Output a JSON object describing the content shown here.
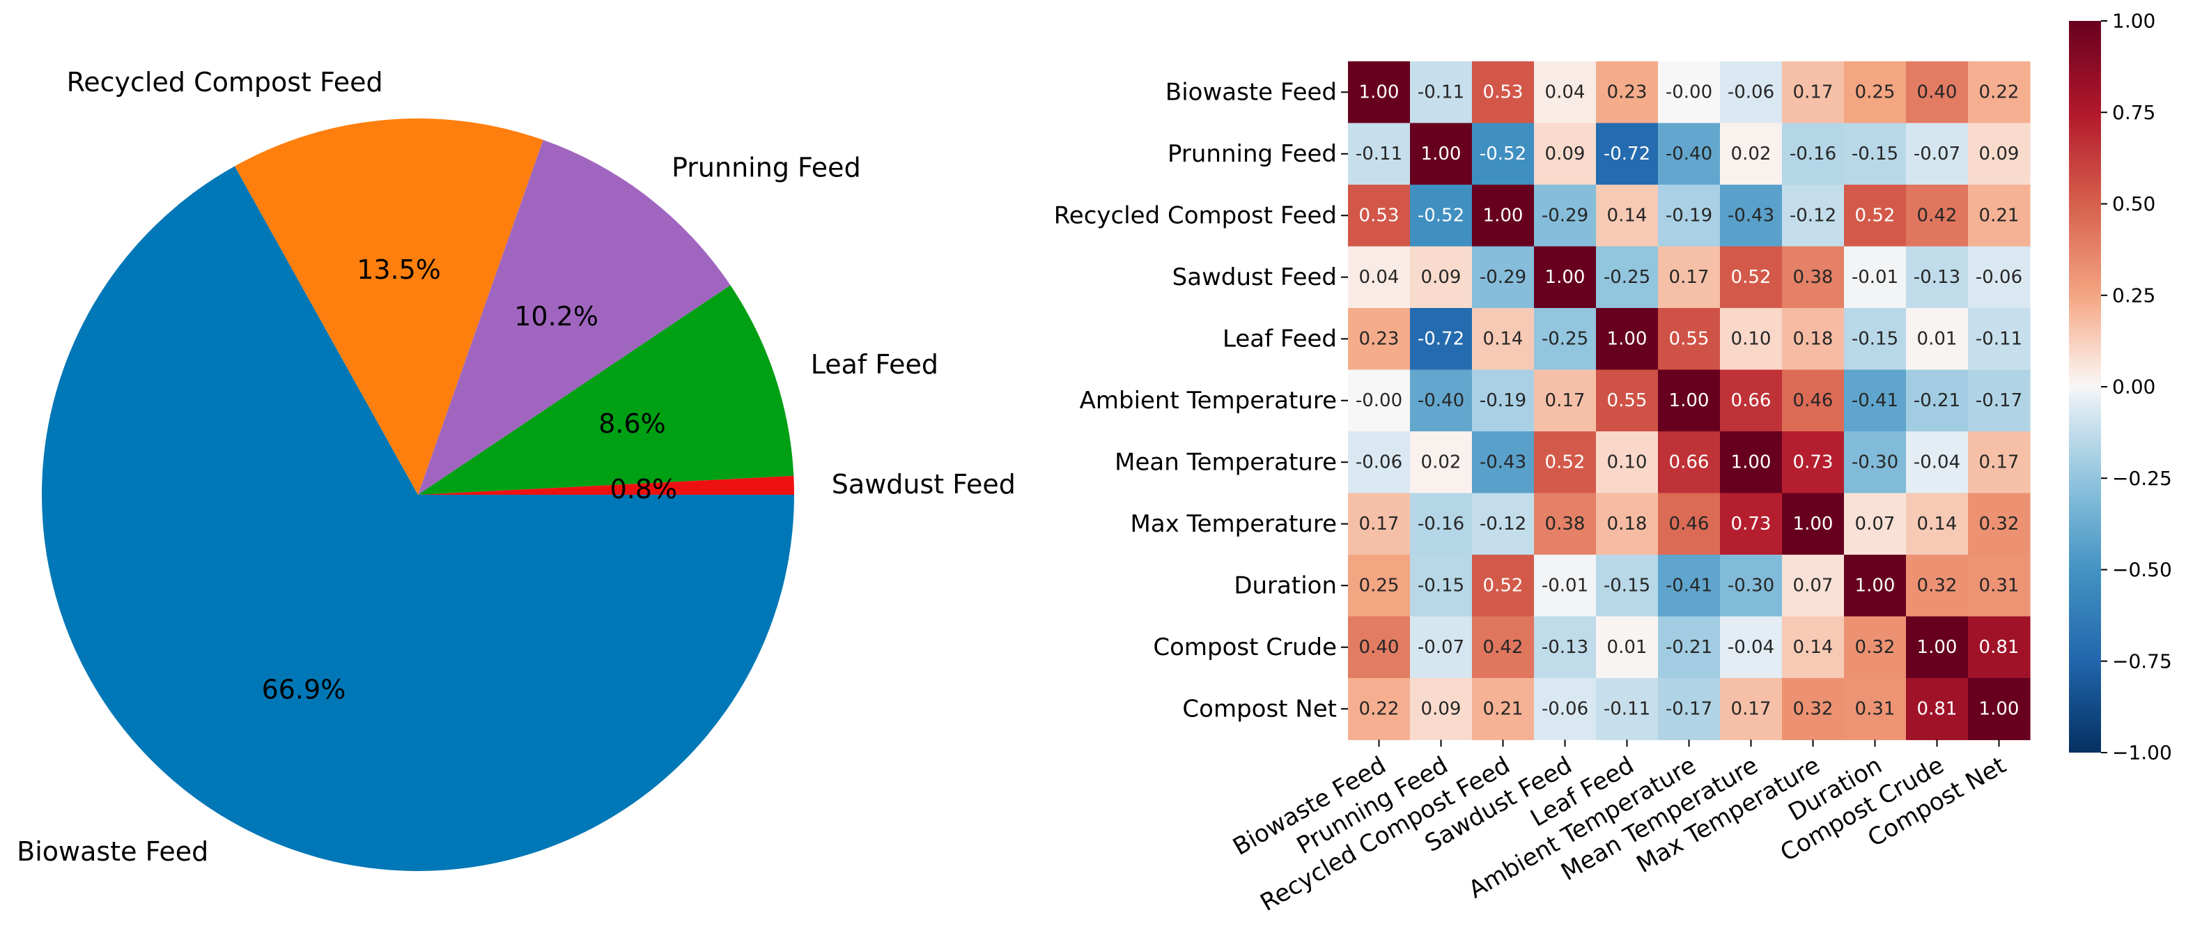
{
  "chart_data": [
    {
      "type": "pie",
      "slices": [
        {
          "label": "Biowaste Feed",
          "pct_label": "66.9%",
          "value": 66.9,
          "color": "#0077b6"
        },
        {
          "label": "Recycled Compost Feed",
          "pct_label": "13.5%",
          "value": 13.5,
          "color": "#ff7f0e"
        },
        {
          "label": "Prunning Feed",
          "pct_label": "10.2%",
          "value": 10.2,
          "color": "#a066bf"
        },
        {
          "label": "Leaf Feed",
          "pct_label": "8.6%",
          "value": 8.6,
          "color": "#00a014"
        },
        {
          "label": "Sawdust Feed",
          "pct_label": "0.8%",
          "value": 0.8,
          "color": "#ee1111"
        }
      ],
      "startangle_deg": 0,
      "direction": "clockwise"
    },
    {
      "type": "heatmap",
      "labels": [
        "Biowaste Feed",
        "Prunning Feed",
        "Recycled Compost Feed",
        "Sawdust Feed",
        "Leaf Feed",
        "Ambient Temperature",
        "Mean Temperature",
        "Max Temperature",
        "Duration",
        "Compost Crude",
        "Compost Net"
      ],
      "matrix": [
        [
          "1.00",
          "-0.11",
          "0.53",
          "0.04",
          "0.23",
          "-0.00",
          "-0.06",
          "0.17",
          "0.25",
          "0.40",
          "0.22"
        ],
        [
          "-0.11",
          "1.00",
          "-0.52",
          "0.09",
          "-0.72",
          "-0.40",
          "0.02",
          "-0.16",
          "-0.15",
          "-0.07",
          "0.09"
        ],
        [
          "0.53",
          "-0.52",
          "1.00",
          "-0.29",
          "0.14",
          "-0.19",
          "-0.43",
          "-0.12",
          "0.52",
          "0.42",
          "0.21"
        ],
        [
          "0.04",
          "0.09",
          "-0.29",
          "1.00",
          "-0.25",
          "0.17",
          "0.52",
          "0.38",
          "-0.01",
          "-0.13",
          "-0.06"
        ],
        [
          "0.23",
          "-0.72",
          "0.14",
          "-0.25",
          "1.00",
          "0.55",
          "0.10",
          "0.18",
          "-0.15",
          "0.01",
          "-0.11"
        ],
        [
          "-0.00",
          "-0.40",
          "-0.19",
          "0.17",
          "0.55",
          "1.00",
          "0.66",
          "0.46",
          "-0.41",
          "-0.21",
          "-0.17"
        ],
        [
          "-0.06",
          "0.02",
          "-0.43",
          "0.52",
          "0.10",
          "0.66",
          "1.00",
          "0.73",
          "-0.30",
          "-0.04",
          "0.17"
        ],
        [
          "0.17",
          "-0.16",
          "-0.12",
          "0.38",
          "0.18",
          "0.46",
          "0.73",
          "1.00",
          "0.07",
          "0.14",
          "0.32"
        ],
        [
          "0.25",
          "-0.15",
          "0.52",
          "-0.01",
          "-0.15",
          "-0.41",
          "-0.30",
          "0.07",
          "1.00",
          "0.32",
          "0.31"
        ],
        [
          "0.40",
          "-0.07",
          "0.42",
          "-0.13",
          "0.01",
          "-0.21",
          "-0.04",
          "0.14",
          "0.32",
          "1.00",
          "0.81"
        ],
        [
          "0.22",
          "0.09",
          "0.21",
          "-0.06",
          "-0.11",
          "-0.17",
          "0.17",
          "0.32",
          "0.31",
          "0.81",
          "1.00"
        ]
      ],
      "colormap": "RdBu_r",
      "vmin": -1.0,
      "vmax": 1.0,
      "colorbar_ticks": [
        "1.00",
        "0.75",
        "0.50",
        "0.25",
        "0.00",
        "−0.25",
        "−0.50",
        "−0.75",
        "−1.00"
      ]
    }
  ]
}
